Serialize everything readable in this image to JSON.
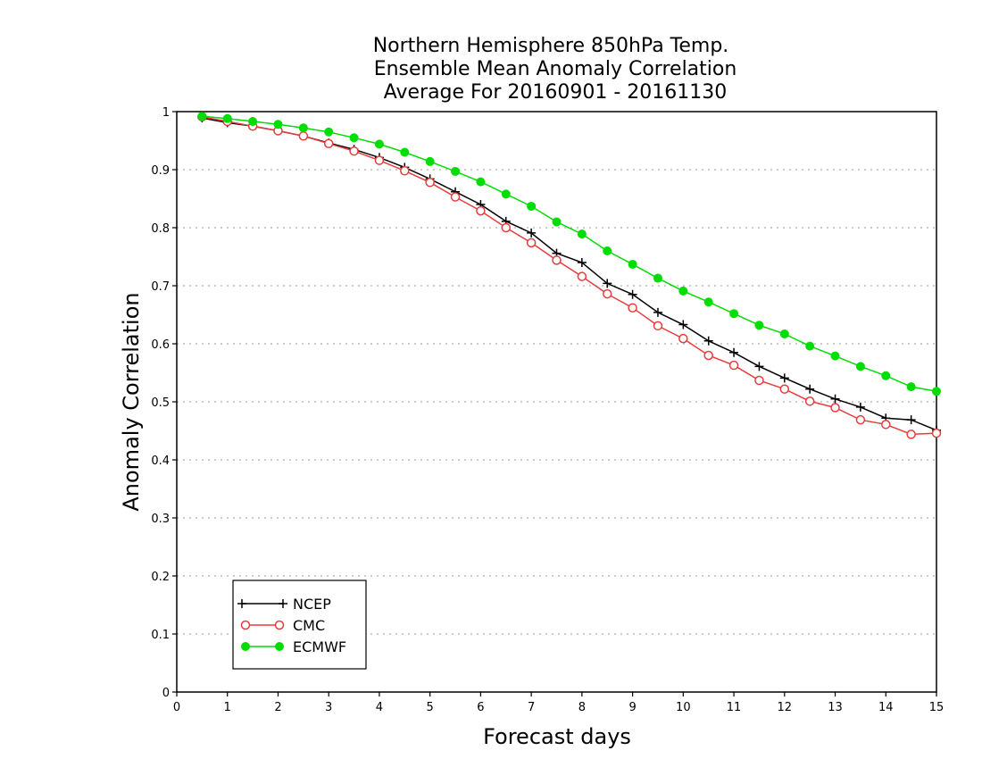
{
  "chart_data": {
    "type": "line",
    "title_lines": [
      "Northern Hemisphere 850hPa Temp.",
      "Ensemble Mean Anomaly Correlation",
      "Average For 20160901 - 20161130"
    ],
    "xlabel": "Forecast days",
    "ylabel": "Anomaly Correlation",
    "xlim": [
      0,
      15
    ],
    "ylim": [
      0,
      1
    ],
    "xticks": [
      "0",
      "1",
      "2",
      "3",
      "4",
      "5",
      "6",
      "7",
      "8",
      "9",
      "10",
      "11",
      "12",
      "13",
      "14",
      "15"
    ],
    "yticks": [
      "0",
      "0.1",
      "0.2",
      "0.3",
      "0.4",
      "0.5",
      "0.6",
      "0.7",
      "0.8",
      "0.9",
      "1"
    ],
    "grid": "horizontal dotted",
    "legend_position": "bottom-left",
    "x": [
      0.5,
      1,
      1.5,
      2,
      2.5,
      3,
      3.5,
      4,
      4.5,
      5,
      5.5,
      6,
      6.5,
      7,
      7.5,
      8,
      8.5,
      9,
      9.5,
      10,
      10.5,
      11,
      11.5,
      12,
      12.5,
      13,
      13.5,
      14,
      14.5,
      15
    ],
    "series": [
      {
        "name": "NCEP",
        "color": "#000000",
        "marker": "plus",
        "values": [
          0.989,
          0.981,
          0.975,
          0.967,
          0.958,
          0.946,
          0.935,
          0.921,
          0.904,
          0.884,
          0.862,
          0.84,
          0.811,
          0.791,
          0.756,
          0.74,
          0.704,
          0.685,
          0.654,
          0.633,
          0.605,
          0.585,
          0.561,
          0.541,
          0.522,
          0.505,
          0.491,
          0.472,
          0.469,
          0.451
        ]
      },
      {
        "name": "CMC",
        "color": "#e83c3c",
        "marker": "open-circle",
        "values": [
          0.991,
          0.983,
          0.975,
          0.967,
          0.958,
          0.945,
          0.932,
          0.916,
          0.898,
          0.878,
          0.853,
          0.829,
          0.8,
          0.774,
          0.744,
          0.716,
          0.686,
          0.662,
          0.631,
          0.609,
          0.58,
          0.563,
          0.537,
          0.522,
          0.501,
          0.49,
          0.469,
          0.461,
          0.444,
          0.446
        ]
      },
      {
        "name": "ECMWF",
        "color": "#00dd00",
        "marker": "filled-circle",
        "values": [
          0.992,
          0.988,
          0.983,
          0.978,
          0.972,
          0.965,
          0.955,
          0.944,
          0.93,
          0.914,
          0.897,
          0.879,
          0.858,
          0.837,
          0.81,
          0.789,
          0.76,
          0.737,
          0.713,
          0.691,
          0.672,
          0.652,
          0.632,
          0.617,
          0.596,
          0.579,
          0.561,
          0.545,
          0.526,
          0.518
        ]
      }
    ]
  }
}
